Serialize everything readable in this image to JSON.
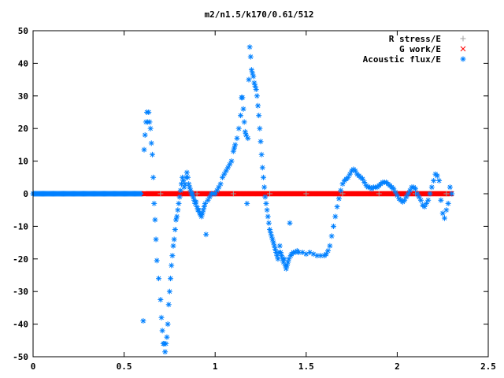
{
  "chart_data": {
    "type": "scatter",
    "title": "m2/n1.5/k170/0.61/512",
    "xlabel": "",
    "ylabel": "",
    "xlim": [
      0,
      2.5
    ],
    "ylim": [
      -50,
      50
    ],
    "x_ticks": [
      "0",
      "0.5",
      "1",
      "1.5",
      "2",
      "2.5"
    ],
    "x_tick_values": [
      0,
      0.5,
      1,
      1.5,
      2,
      2.5
    ],
    "y_ticks": [
      "50",
      "40",
      "30",
      "20",
      "10",
      "0",
      "-10",
      "-20",
      "-30",
      "-40",
      "-50"
    ],
    "y_tick_values": [
      50,
      40,
      30,
      20,
      10,
      0,
      -10,
      -20,
      -30,
      -40,
      -50
    ],
    "grid": false,
    "legend_position": "top-right",
    "series": [
      {
        "name": "R stress/E",
        "marker": "plus",
        "color": "#a0a0a0",
        "x_range": [
          0.61,
          2.3
        ],
        "points": [
          [
            0.7,
            0
          ],
          [
            0.9,
            0
          ],
          [
            1.1,
            0
          ],
          [
            1.3,
            0
          ],
          [
            1.5,
            0
          ],
          [
            1.7,
            0
          ],
          [
            1.9,
            0
          ],
          [
            2.1,
            0
          ],
          [
            2.27,
            0
          ]
        ]
      },
      {
        "name": "G work/E",
        "marker": "x",
        "color": "#ff0000",
        "x_range": [
          0.61,
          2.3
        ],
        "points": [
          [
            0.61,
            0
          ],
          [
            0.7,
            0
          ],
          [
            0.8,
            0
          ],
          [
            0.9,
            0
          ],
          [
            1.0,
            0
          ],
          [
            1.1,
            0
          ],
          [
            1.2,
            0
          ],
          [
            1.3,
            0
          ],
          [
            1.4,
            0
          ],
          [
            1.5,
            0
          ],
          [
            1.6,
            0
          ],
          [
            1.7,
            0
          ],
          [
            1.8,
            0
          ],
          [
            1.9,
            0
          ],
          [
            2.0,
            0
          ],
          [
            2.1,
            0
          ],
          [
            2.2,
            0
          ],
          [
            2.3,
            0
          ]
        ]
      },
      {
        "name": "Acoustic flux/E",
        "marker": "star",
        "color": "#0080ff",
        "baseline_range": [
          0,
          0.6
        ],
        "points": [
          [
            0.605,
            -39
          ],
          [
            0.61,
            13.5
          ],
          [
            0.615,
            18
          ],
          [
            0.62,
            22
          ],
          [
            0.625,
            25
          ],
          [
            0.63,
            22
          ],
          [
            0.635,
            25
          ],
          [
            0.64,
            22
          ],
          [
            0.645,
            20
          ],
          [
            0.65,
            15.5
          ],
          [
            0.655,
            12
          ],
          [
            0.66,
            5
          ],
          [
            0.665,
            -3
          ],
          [
            0.67,
            -8
          ],
          [
            0.675,
            -14
          ],
          [
            0.68,
            -20.5
          ],
          [
            0.69,
            -26
          ],
          [
            0.7,
            -32.5
          ],
          [
            0.705,
            -38
          ],
          [
            0.71,
            -42
          ],
          [
            0.715,
            -46
          ],
          [
            0.72,
            -46
          ],
          [
            0.725,
            -48.5
          ],
          [
            0.73,
            -46
          ],
          [
            0.735,
            -44
          ],
          [
            0.74,
            -40
          ],
          [
            0.745,
            -34
          ],
          [
            0.75,
            -30
          ],
          [
            0.755,
            -26
          ],
          [
            0.76,
            -22
          ],
          [
            0.765,
            -19
          ],
          [
            0.77,
            -16
          ],
          [
            0.775,
            -14
          ],
          [
            0.78,
            -11
          ],
          [
            0.785,
            -8
          ],
          [
            0.79,
            -7
          ],
          [
            0.795,
            -5
          ],
          [
            0.8,
            -3
          ],
          [
            0.805,
            -1
          ],
          [
            0.81,
            1
          ],
          [
            0.815,
            3
          ],
          [
            0.82,
            5
          ],
          [
            0.825,
            4
          ],
          [
            0.83,
            2
          ],
          [
            0.835,
            3
          ],
          [
            0.84,
            5
          ],
          [
            0.845,
            6.5
          ],
          [
            0.85,
            5
          ],
          [
            0.855,
            3
          ],
          [
            0.86,
            2
          ],
          [
            0.865,
            1
          ],
          [
            0.87,
            0
          ],
          [
            0.875,
            0
          ],
          [
            0.88,
            -1
          ],
          [
            0.885,
            -2
          ],
          [
            0.89,
            -3
          ],
          [
            0.895,
            -2.5
          ],
          [
            0.9,
            -4
          ],
          [
            0.905,
            -5
          ],
          [
            0.91,
            -5
          ],
          [
            0.915,
            -6
          ],
          [
            0.92,
            -6.5
          ],
          [
            0.925,
            -7
          ],
          [
            0.93,
            -6
          ],
          [
            0.935,
            -5
          ],
          [
            0.94,
            -4
          ],
          [
            0.945,
            -3
          ],
          [
            0.95,
            -12.5
          ],
          [
            0.96,
            -2
          ],
          [
            0.97,
            -1
          ],
          [
            0.98,
            0
          ],
          [
            0.99,
            0
          ],
          [
            1.0,
            0
          ],
          [
            1.01,
            1
          ],
          [
            1.02,
            2
          ],
          [
            1.03,
            3
          ],
          [
            1.04,
            5
          ],
          [
            1.05,
            6
          ],
          [
            1.06,
            7
          ],
          [
            1.07,
            8
          ],
          [
            1.08,
            9
          ],
          [
            1.09,
            10
          ],
          [
            1.1,
            13
          ],
          [
            1.105,
            14
          ],
          [
            1.11,
            15
          ],
          [
            1.12,
            17
          ],
          [
            1.13,
            20
          ],
          [
            1.14,
            24
          ],
          [
            1.145,
            29.5
          ],
          [
            1.15,
            29.5
          ],
          [
            1.155,
            26
          ],
          [
            1.16,
            22
          ],
          [
            1.165,
            19
          ],
          [
            1.17,
            18
          ],
          [
            1.175,
            -3
          ],
          [
            1.18,
            17
          ],
          [
            1.185,
            35
          ],
          [
            1.19,
            45
          ],
          [
            1.195,
            42
          ],
          [
            1.2,
            38
          ],
          [
            1.205,
            37
          ],
          [
            1.21,
            36
          ],
          [
            1.215,
            34
          ],
          [
            1.22,
            33
          ],
          [
            1.225,
            32
          ],
          [
            1.23,
            30
          ],
          [
            1.235,
            27
          ],
          [
            1.24,
            24
          ],
          [
            1.245,
            20
          ],
          [
            1.25,
            16
          ],
          [
            1.255,
            12
          ],
          [
            1.26,
            8
          ],
          [
            1.265,
            5
          ],
          [
            1.27,
            2
          ],
          [
            1.275,
            -1
          ],
          [
            1.28,
            -3
          ],
          [
            1.285,
            -5
          ],
          [
            1.29,
            -7
          ],
          [
            1.295,
            -9
          ],
          [
            1.3,
            -11
          ],
          [
            1.305,
            -12
          ],
          [
            1.31,
            -13
          ],
          [
            1.315,
            -14
          ],
          [
            1.32,
            -15
          ],
          [
            1.325,
            -16
          ],
          [
            1.33,
            -17
          ],
          [
            1.335,
            -18
          ],
          [
            1.34,
            -19
          ],
          [
            1.345,
            -20
          ],
          [
            1.35,
            -18
          ],
          [
            1.355,
            -16
          ],
          [
            1.36,
            -18
          ],
          [
            1.365,
            -19
          ],
          [
            1.37,
            -20
          ],
          [
            1.375,
            -21
          ],
          [
            1.38,
            -20
          ],
          [
            1.385,
            -22
          ],
          [
            1.39,
            -23
          ],
          [
            1.395,
            -22
          ],
          [
            1.4,
            -21
          ],
          [
            1.405,
            -20
          ],
          [
            1.41,
            -9
          ],
          [
            1.415,
            -19
          ],
          [
            1.42,
            -18.5
          ],
          [
            1.43,
            -18
          ],
          [
            1.44,
            -18
          ],
          [
            1.45,
            -17.5
          ],
          [
            1.46,
            -18
          ],
          [
            1.48,
            -18
          ],
          [
            1.5,
            -18.5
          ],
          [
            1.52,
            -18
          ],
          [
            1.54,
            -18.5
          ],
          [
            1.56,
            -19
          ],
          [
            1.58,
            -19
          ],
          [
            1.6,
            -19
          ],
          [
            1.61,
            -18.5
          ],
          [
            1.62,
            -17.5
          ],
          [
            1.63,
            -16
          ],
          [
            1.64,
            -13
          ],
          [
            1.65,
            -10
          ],
          [
            1.66,
            -7
          ],
          [
            1.67,
            -4
          ],
          [
            1.68,
            -1.5
          ],
          [
            1.69,
            1
          ],
          [
            1.7,
            3
          ],
          [
            1.71,
            4
          ],
          [
            1.72,
            4.5
          ],
          [
            1.73,
            5
          ],
          [
            1.74,
            6
          ],
          [
            1.75,
            7
          ],
          [
            1.76,
            7.5
          ],
          [
            1.77,
            7
          ],
          [
            1.78,
            6
          ],
          [
            1.79,
            5.5
          ],
          [
            1.8,
            5
          ],
          [
            1.81,
            4.5
          ],
          [
            1.82,
            3.5
          ],
          [
            1.83,
            2.5
          ],
          [
            1.84,
            2
          ],
          [
            1.85,
            2
          ],
          [
            1.86,
            1.5
          ],
          [
            1.87,
            2
          ],
          [
            1.88,
            2
          ],
          [
            1.89,
            2
          ],
          [
            1.9,
            2.5
          ],
          [
            1.91,
            3
          ],
          [
            1.92,
            3.5
          ],
          [
            1.93,
            3.5
          ],
          [
            1.94,
            3.5
          ],
          [
            1.95,
            3
          ],
          [
            1.96,
            2.5
          ],
          [
            1.97,
            2
          ],
          [
            1.98,
            1.5
          ],
          [
            1.99,
            0.5
          ],
          [
            2.0,
            -0.5
          ],
          [
            2.01,
            -1.5
          ],
          [
            2.02,
            -2
          ],
          [
            2.03,
            -2.5
          ],
          [
            2.04,
            -2
          ],
          [
            2.05,
            -1
          ],
          [
            2.06,
            0
          ],
          [
            2.07,
            1
          ],
          [
            2.08,
            2
          ],
          [
            2.09,
            2
          ],
          [
            2.1,
            1.5
          ],
          [
            2.11,
            0
          ],
          [
            2.12,
            -1
          ],
          [
            2.13,
            -2
          ],
          [
            2.14,
            -3.5
          ],
          [
            2.15,
            -4
          ],
          [
            2.16,
            -3
          ],
          [
            2.17,
            -2
          ],
          [
            2.18,
            0
          ],
          [
            2.19,
            2
          ],
          [
            2.2,
            4
          ],
          [
            2.21,
            6
          ],
          [
            2.22,
            5.5
          ],
          [
            2.23,
            4
          ],
          [
            2.24,
            -2
          ],
          [
            2.25,
            -6
          ],
          [
            2.26,
            -7.5
          ],
          [
            2.27,
            -5
          ],
          [
            2.28,
            -3
          ],
          [
            2.29,
            2
          ],
          [
            2.3,
            0
          ]
        ]
      }
    ]
  }
}
